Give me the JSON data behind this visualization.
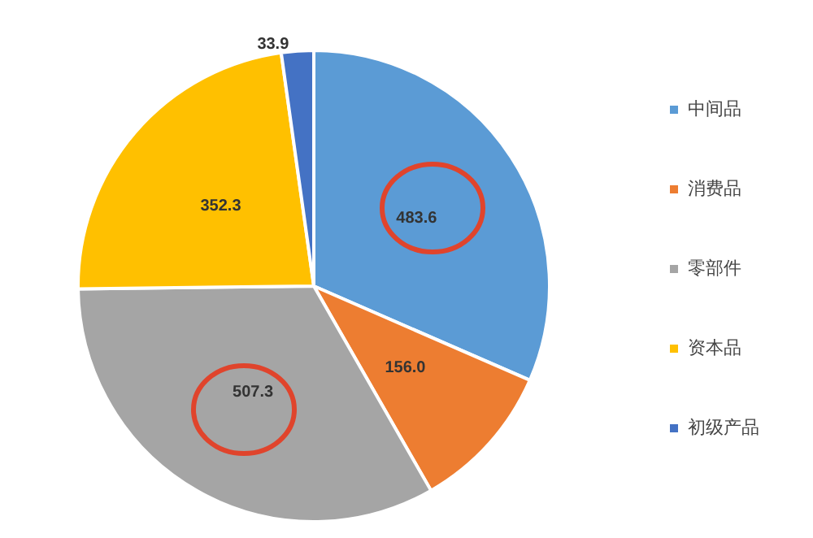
{
  "chart_data": {
    "type": "pie",
    "categories": [
      "中间品",
      "消费品",
      "零部件",
      "资本品",
      "初级产品"
    ],
    "values": [
      483.6,
      156.0,
      507.3,
      352.3,
      33.9
    ],
    "value_labels": [
      "483.6",
      "156.0",
      "507.3",
      "352.3",
      "33.9"
    ],
    "colors": [
      "#5b9bd5",
      "#ed7d31",
      "#a5a5a5",
      "#ffc000",
      "#4472c4"
    ],
    "legend": "right"
  }
}
